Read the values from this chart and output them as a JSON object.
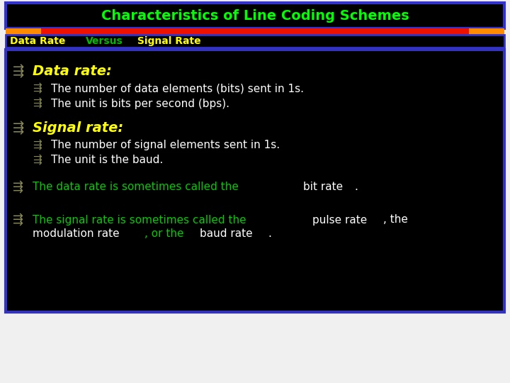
{
  "title": "Characteristics of Line Coding Schemes",
  "title_color": "#00FF00",
  "title_bg": "#000000",
  "title_border": "#3333CC",
  "subtitle_parts": [
    {
      "text": "Data Rate ",
      "color": "#FFFF00"
    },
    {
      "text": "Versus",
      "color": "#00BB00"
    },
    {
      "text": " Signal Rate",
      "color": "#FFFF00"
    }
  ],
  "subtitle_bg": "#000000",
  "subtitle_border": "#3333CC",
  "sep_left_color": "#FF8C00",
  "sep_mid_color": "#EE1100",
  "sep_right_color": "#FF8C00",
  "main_bg": "#000000",
  "main_border": "#3333BB",
  "fig_width": 7.2,
  "fig_height": 5.4,
  "dpi": 100,
  "title_fontsize": 14,
  "subtitle_fontsize": 10,
  "header_fontsize": 14,
  "body_fontsize": 11,
  "bullet_color": "#888855"
}
